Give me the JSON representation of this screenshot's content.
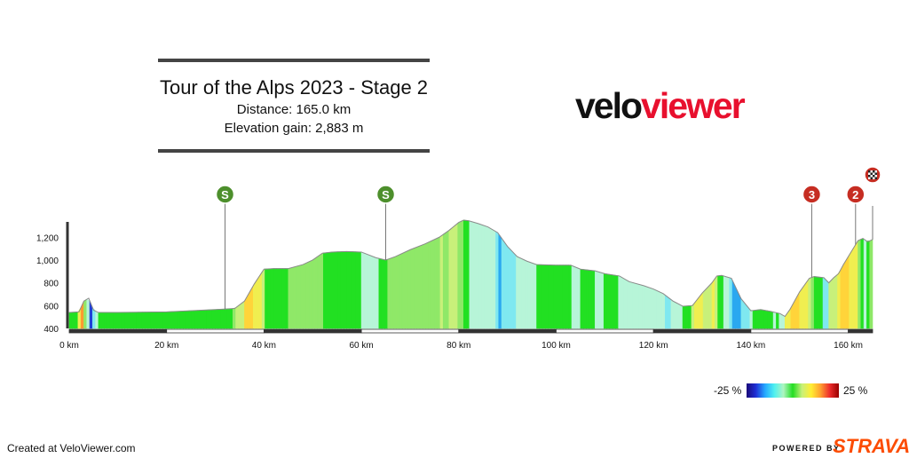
{
  "header": {
    "title": "Tour of the Alps 2023 - Stage 2",
    "distance": "Distance: 165.0 km",
    "elevation_gain": "Elevation gain: 2,883 m"
  },
  "logo": {
    "part1": "velo",
    "part2": "viewer"
  },
  "chart_data": {
    "type": "area",
    "title": "Tour of the Alps 2023 - Stage 2",
    "xlabel": "",
    "ylabel": "",
    "xlim": [
      0,
      165
    ],
    "ylim": [
      400,
      1350
    ],
    "x_ticks": [
      0,
      20,
      40,
      60,
      80,
      100,
      120,
      140,
      160
    ],
    "x_tick_labels": [
      "0 km",
      "20 km",
      "40 km",
      "60 km",
      "80 km",
      "100 km",
      "120 km",
      "140 km",
      "160 km"
    ],
    "y_ticks": [
      400,
      600,
      800,
      1000,
      1200
    ],
    "y_tick_labels": [
      "400",
      "600",
      "800",
      "1,000",
      "1,200"
    ],
    "grid": false,
    "profile": [
      [
        0,
        540
      ],
      [
        2,
        545
      ],
      [
        3,
        640
      ],
      [
        4,
        665
      ],
      [
        5,
        560
      ],
      [
        6,
        540
      ],
      [
        10,
        540
      ],
      [
        20,
        545
      ],
      [
        30,
        565
      ],
      [
        34,
        575
      ],
      [
        36,
        640
      ],
      [
        38,
        790
      ],
      [
        40,
        920
      ],
      [
        42,
        925
      ],
      [
        45,
        925
      ],
      [
        48,
        960
      ],
      [
        50,
        1000
      ],
      [
        52,
        1060
      ],
      [
        54,
        1070
      ],
      [
        57,
        1075
      ],
      [
        60,
        1070
      ],
      [
        63,
        1020
      ],
      [
        65,
        1000
      ],
      [
        67,
        1030
      ],
      [
        70,
        1090
      ],
      [
        73,
        1140
      ],
      [
        76,
        1200
      ],
      [
        78,
        1260
      ],
      [
        80,
        1330
      ],
      [
        81,
        1350
      ],
      [
        82,
        1345
      ],
      [
        84,
        1320
      ],
      [
        86,
        1290
      ],
      [
        88,
        1240
      ],
      [
        90,
        1120
      ],
      [
        92,
        1030
      ],
      [
        94,
        990
      ],
      [
        96,
        960
      ],
      [
        100,
        955
      ],
      [
        103,
        955
      ],
      [
        105,
        920
      ],
      [
        108,
        905
      ],
      [
        110,
        880
      ],
      [
        113,
        860
      ],
      [
        115,
        810
      ],
      [
        118,
        775
      ],
      [
        120,
        745
      ],
      [
        122,
        705
      ],
      [
        124,
        640
      ],
      [
        126,
        595
      ],
      [
        128,
        600
      ],
      [
        130,
        710
      ],
      [
        132,
        800
      ],
      [
        133,
        860
      ],
      [
        134,
        865
      ],
      [
        136,
        840
      ],
      [
        138,
        660
      ],
      [
        140,
        555
      ],
      [
        142,
        565
      ],
      [
        144,
        550
      ],
      [
        146,
        530
      ],
      [
        147,
        505
      ],
      [
        148,
        565
      ],
      [
        150,
        720
      ],
      [
        152,
        840
      ],
      [
        153,
        855
      ],
      [
        155,
        845
      ],
      [
        156,
        800
      ],
      [
        157,
        845
      ],
      [
        158,
        880
      ],
      [
        159,
        960
      ],
      [
        161,
        1100
      ],
      [
        162,
        1170
      ],
      [
        163,
        1190
      ],
      [
        164,
        1160
      ],
      [
        165,
        1180
      ]
    ],
    "gradient_legend": {
      "min_label": "-25 %",
      "max_label": "25 %"
    },
    "markers": [
      {
        "km": 32.0,
        "label": "S",
        "kind": "sprint",
        "color": "#4d8f2c"
      },
      {
        "km": 65.0,
        "label": "S",
        "kind": "sprint",
        "color": "#4d8f2c"
      },
      {
        "km": 152.5,
        "label": "3",
        "kind": "climb",
        "color": "#c62d22"
      },
      {
        "km": 161.5,
        "label": "2",
        "kind": "climb",
        "color": "#c62d22"
      },
      {
        "km": 165.0,
        "label": "",
        "kind": "finish",
        "color": "#c62d22"
      }
    ]
  },
  "footer": {
    "credit": "Created at VeloViewer.com",
    "powered": "POWERED BY",
    "strava": "STRAVA"
  }
}
